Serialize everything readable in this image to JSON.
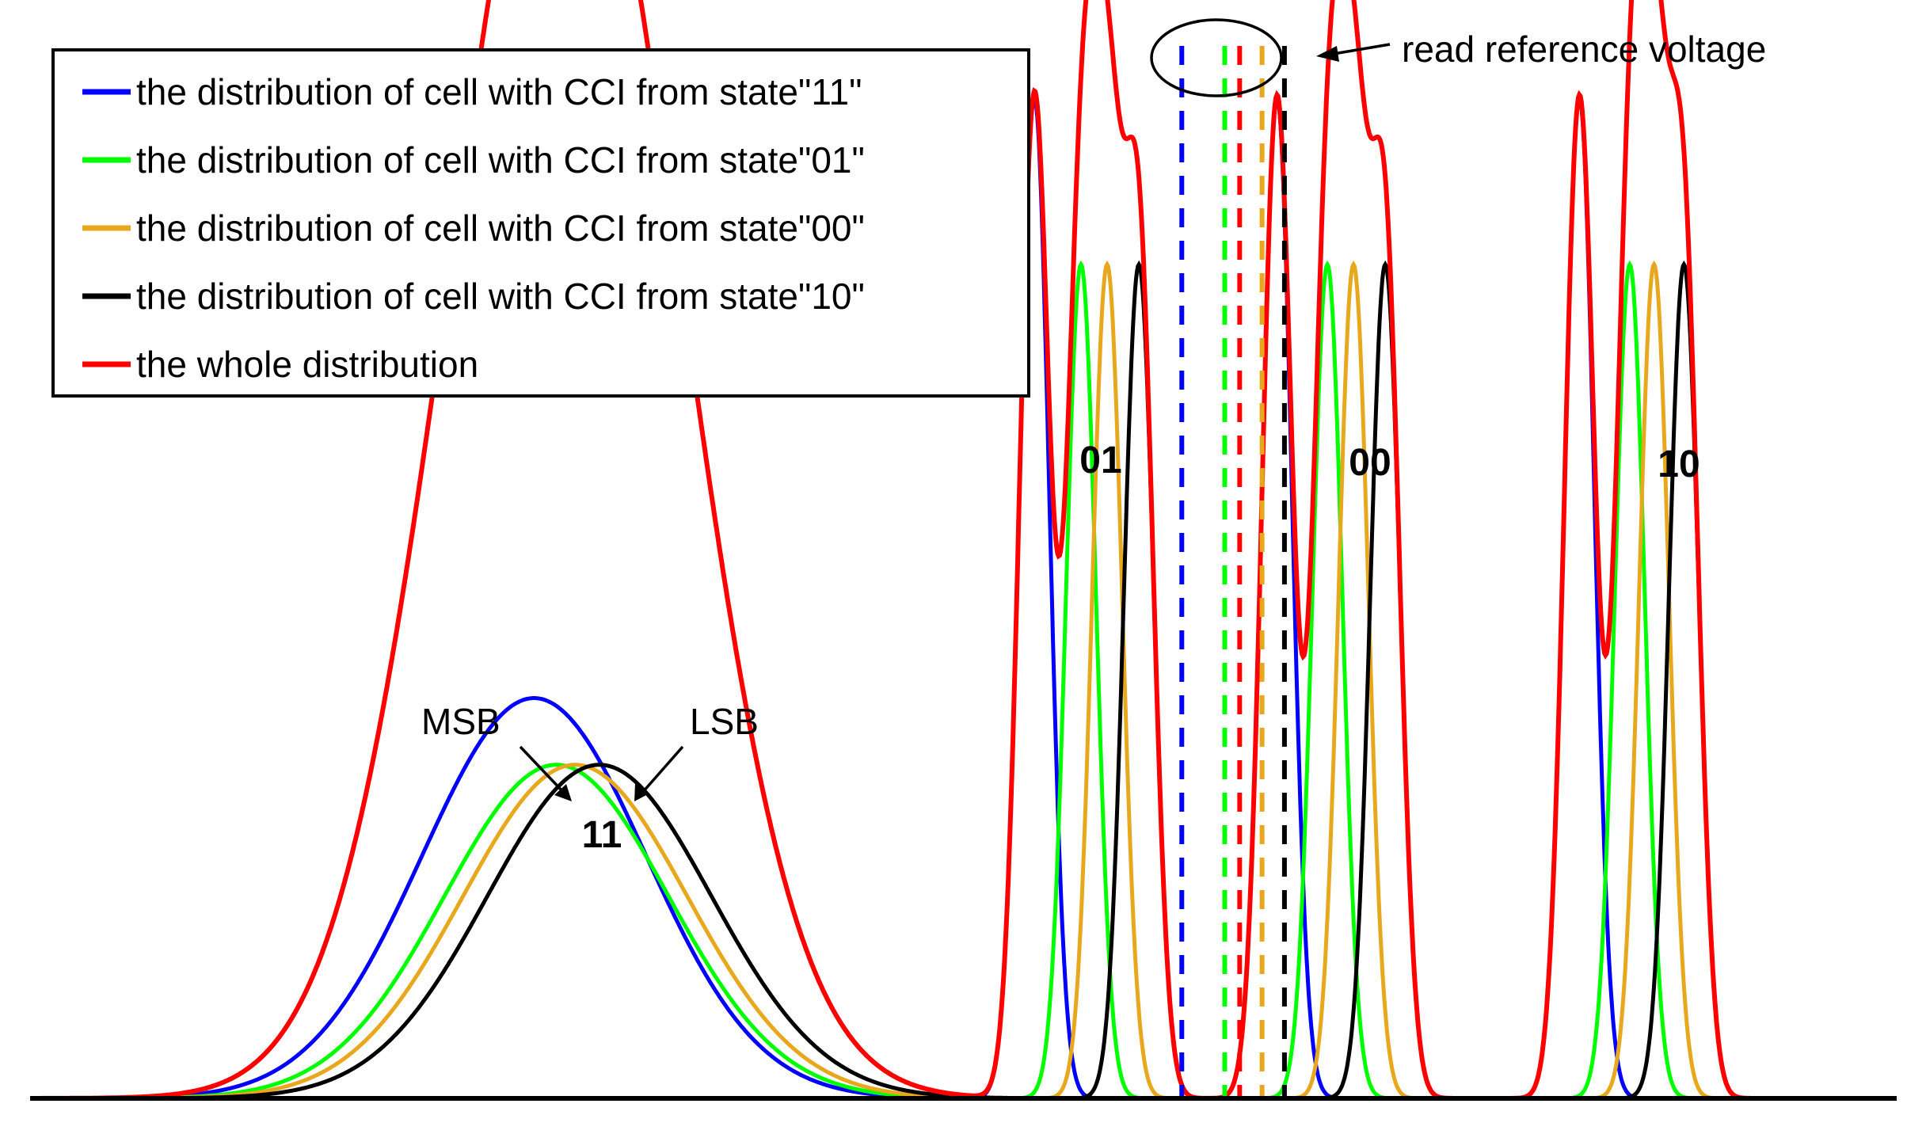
{
  "chart_data": {
    "type": "line",
    "title": "",
    "xlabel": "",
    "ylabel": "",
    "xlim": [
      0,
      1000
    ],
    "ylim": [
      0,
      1.3
    ],
    "grid": false,
    "legend": {
      "placement": "top-left",
      "entries": [
        {
          "label": "the distribution of cell with CCI from state\"11\"",
          "color": "#0000ff"
        },
        {
          "label": "the distribution of cell with CCI from state\"01\"",
          "color": "#00ff00"
        },
        {
          "label": "the distribution of cell with CCI from state\"00\"",
          "color": "#e8a81e"
        },
        {
          "label": "the distribution of cell with CCI from state\"10\"",
          "color": "#000000"
        },
        {
          "label": "the whole distribution",
          "color": "#ff0000"
        }
      ]
    },
    "states": [
      {
        "name": "11",
        "sigma": 60.0,
        "weight": 0.4,
        "series_means": [
          270,
          282,
          292,
          305
        ],
        "peak_label": "11"
      },
      {
        "name": "01",
        "sigma": 8.0,
        "weight": 1.0,
        "series_means": [
          538,
          563,
          577,
          594
        ],
        "peak_label": "01"
      },
      {
        "name": "00",
        "sigma": 8.0,
        "weight": 1.0,
        "series_means": [
          668,
          695,
          709,
          726
        ],
        "peak_label": "00"
      },
      {
        "name": "10",
        "sigma": 8.0,
        "weight": 1.0,
        "series_means": [
          830,
          857,
          870,
          886
        ],
        "peak_label": "10"
      }
    ],
    "series_weights": [
      1.2,
      1.0,
      1.0,
      1.0
    ],
    "series_names": [
      "state\"11\"",
      "state\"01\"",
      "state\"00\"",
      "state\"10\""
    ],
    "series_colors": [
      "#0000ff",
      "#00ff00",
      "#e8a81e",
      "#000000"
    ],
    "whole_color": "#ff0000",
    "read_reference": {
      "positions": [
        617,
        640,
        648,
        660,
        672
      ],
      "colors": [
        "#0000ff",
        "#00ff00",
        "#ff0000",
        "#e8a81e",
        "#000000"
      ],
      "label": "read reference voltage"
    },
    "annotations": {
      "msb": "MSB",
      "lsb": "LSB"
    }
  }
}
